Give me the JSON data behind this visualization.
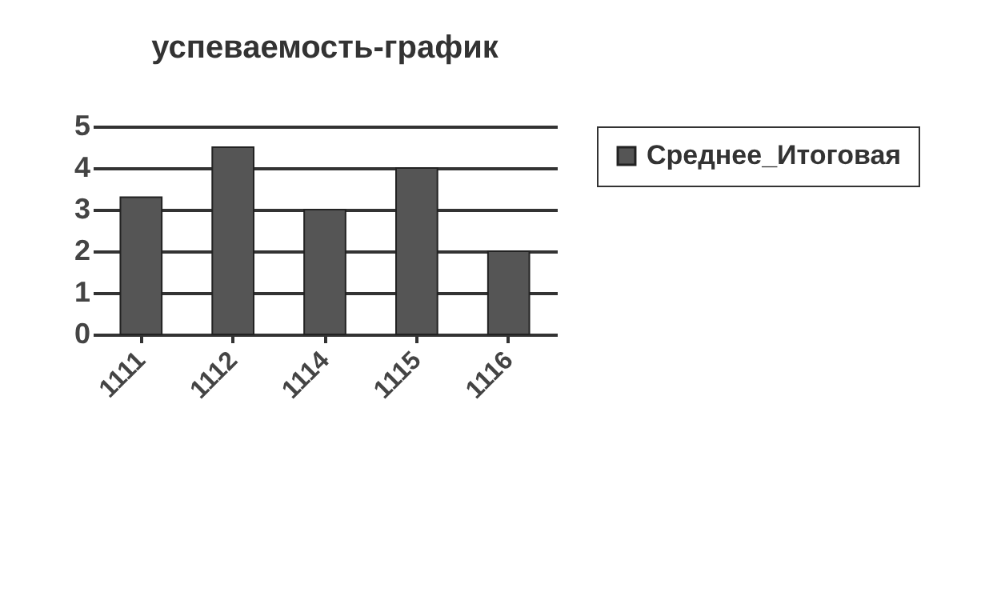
{
  "chart_data": {
    "type": "bar",
    "title": "успеваемость-график",
    "categories": [
      "1111",
      "1112",
      "1114",
      "1115",
      "1116"
    ],
    "series": [
      {
        "name": "Среднее_Итоговая",
        "color": "#555555",
        "values": [
          3.3,
          4.5,
          3,
          4,
          2
        ]
      }
    ],
    "ylim": [
      0,
      5
    ],
    "yticks": [
      0,
      1,
      2,
      3,
      4,
      5
    ],
    "grid": "y",
    "legend": "right"
  }
}
